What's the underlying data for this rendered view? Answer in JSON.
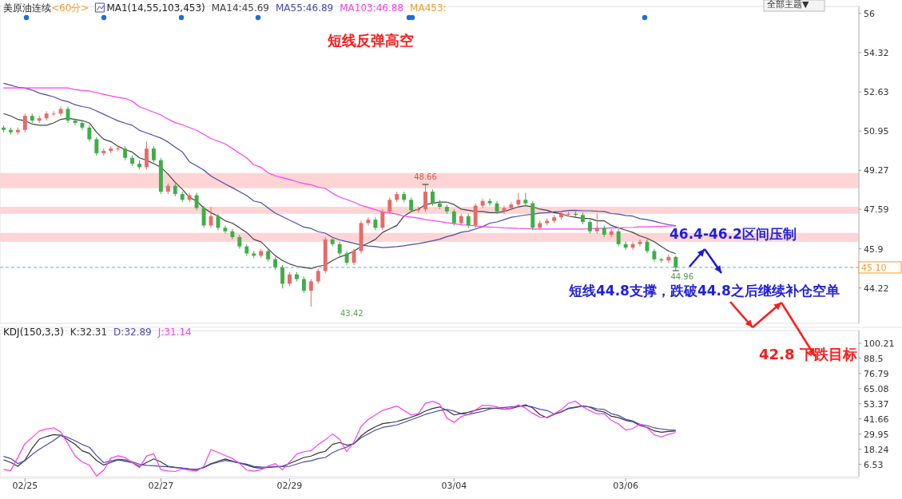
{
  "chart_data": [
    {
      "type": "candlestick",
      "title": "美原油连续",
      "subtitle": "<60分>",
      "legend_title": "MA1(14,55,103,453)",
      "legend": "top",
      "tick_labels": "y",
      "ylim": [
        42.7,
        56.3
      ],
      "yticks": [
        44.22,
        45.9,
        47.59,
        49.27,
        50.95,
        52.63,
        54.32,
        56.0
      ],
      "categories": [
        null,
        null,
        null,
        null,
        null,
        null,
        null,
        null,
        null,
        null,
        null,
        null,
        null,
        null,
        null,
        null,
        null,
        null,
        null,
        null,
        null,
        null,
        null,
        null,
        null,
        null,
        null,
        null,
        null,
        null,
        null,
        null,
        null,
        null,
        null,
        null,
        null,
        null,
        null,
        null,
        null,
        null,
        null,
        null,
        null,
        null,
        null,
        null,
        null,
        null,
        null,
        null,
        null,
        null,
        null,
        null,
        null,
        null,
        null,
        null,
        null,
        null,
        null,
        null,
        null,
        null,
        null,
        null,
        null,
        null,
        null,
        null,
        null,
        null,
        null,
        null,
        null,
        null,
        null,
        null,
        null,
        null,
        null,
        null,
        null,
        null,
        null,
        null,
        null,
        null,
        null,
        null,
        null,
        null,
        null
      ],
      "ohlc": [
        [
          51.1,
          51.2,
          50.9,
          51.0
        ],
        [
          51.0,
          51.1,
          50.8,
          50.9
        ],
        [
          50.9,
          51.1,
          50.8,
          51.0
        ],
        [
          51.0,
          51.7,
          50.9,
          51.6
        ],
        [
          51.6,
          51.7,
          51.3,
          51.4
        ],
        [
          51.4,
          51.6,
          51.3,
          51.5
        ],
        [
          51.5,
          51.8,
          51.4,
          51.7
        ],
        [
          51.7,
          51.8,
          51.6,
          51.7
        ],
        [
          51.7,
          52.0,
          51.6,
          51.9
        ],
        [
          51.9,
          52.0,
          51.3,
          51.4
        ],
        [
          51.4,
          51.5,
          51.2,
          51.3
        ],
        [
          51.3,
          51.4,
          51.0,
          51.1
        ],
        [
          51.1,
          51.2,
          50.5,
          50.6
        ],
        [
          50.6,
          50.7,
          49.9,
          50.0
        ],
        [
          50.0,
          50.2,
          49.9,
          50.1
        ],
        [
          50.1,
          50.3,
          50.0,
          50.2
        ],
        [
          50.2,
          50.3,
          50.1,
          50.2
        ],
        [
          50.2,
          50.3,
          49.7,
          49.8
        ],
        [
          49.8,
          49.9,
          49.45,
          49.55
        ],
        [
          49.55,
          49.7,
          49.3,
          49.4
        ],
        [
          49.4,
          50.5,
          49.3,
          50.2
        ],
        [
          50.2,
          50.3,
          49.6,
          49.7
        ],
        [
          49.7,
          49.8,
          48.25,
          48.35
        ],
        [
          48.35,
          48.7,
          48.25,
          48.6
        ],
        [
          48.6,
          48.7,
          48.15,
          48.25
        ],
        [
          48.25,
          48.35,
          47.9,
          48.0
        ],
        [
          48.0,
          48.3,
          47.9,
          48.2
        ],
        [
          48.2,
          48.3,
          47.55,
          47.65
        ],
        [
          47.65,
          47.75,
          46.8,
          46.9
        ],
        [
          46.9,
          47.7,
          46.8,
          47.3
        ],
        [
          47.3,
          47.4,
          46.7,
          46.8
        ],
        [
          46.8,
          46.9,
          46.55,
          46.65
        ],
        [
          46.65,
          46.75,
          46.3,
          46.4
        ],
        [
          46.4,
          46.5,
          45.9,
          46.0
        ],
        [
          46.0,
          46.1,
          45.6,
          45.7
        ],
        [
          45.7,
          45.8,
          45.5,
          45.6
        ],
        [
          45.6,
          45.9,
          45.5,
          45.8
        ],
        [
          45.8,
          45.9,
          45.35,
          45.45
        ],
        [
          45.45,
          45.55,
          45.0,
          45.1
        ],
        [
          45.1,
          45.2,
          44.2,
          44.4
        ],
        [
          44.4,
          44.9,
          44.3,
          44.8
        ],
        [
          44.8,
          44.9,
          44.5,
          44.6
        ],
        [
          44.6,
          44.7,
          44.0,
          44.1
        ],
        [
          44.1,
          44.6,
          43.42,
          44.5
        ],
        [
          44.5,
          45.05,
          44.4,
          44.95
        ],
        [
          44.95,
          46.4,
          44.85,
          46.3
        ],
        [
          46.3,
          46.4,
          46.0,
          46.1
        ],
        [
          46.1,
          46.2,
          45.6,
          45.7
        ],
        [
          45.7,
          45.8,
          45.2,
          45.3
        ],
        [
          45.3,
          45.9,
          45.2,
          45.8
        ],
        [
          45.8,
          47.1,
          45.7,
          47.0
        ],
        [
          47.0,
          47.25,
          46.9,
          47.15
        ],
        [
          47.15,
          47.25,
          46.7,
          46.8
        ],
        [
          46.8,
          47.6,
          46.7,
          47.5
        ],
        [
          47.5,
          48.1,
          47.4,
          48.0
        ],
        [
          48.0,
          48.35,
          47.9,
          48.25
        ],
        [
          48.25,
          48.35,
          47.9,
          48.0
        ],
        [
          48.0,
          48.1,
          47.45,
          47.55
        ],
        [
          47.55,
          47.7,
          47.45,
          47.6
        ],
        [
          47.6,
          48.66,
          47.5,
          48.35
        ],
        [
          48.35,
          48.45,
          47.75,
          47.85
        ],
        [
          47.85,
          48.0,
          47.6,
          47.7
        ],
        [
          47.7,
          47.8,
          47.4,
          47.5
        ],
        [
          47.5,
          47.6,
          46.9,
          47.0
        ],
        [
          47.0,
          47.4,
          46.9,
          47.3
        ],
        [
          47.3,
          47.4,
          46.8,
          46.9
        ],
        [
          46.9,
          47.85,
          46.8,
          47.75
        ],
        [
          47.75,
          48.05,
          47.65,
          47.95
        ],
        [
          47.95,
          48.05,
          47.75,
          47.85
        ],
        [
          47.85,
          47.95,
          47.4,
          47.5
        ],
        [
          47.5,
          47.75,
          47.4,
          47.65
        ],
        [
          47.65,
          47.9,
          47.55,
          47.8
        ],
        [
          47.8,
          48.3,
          47.7,
          48.0
        ],
        [
          48.0,
          48.3,
          47.75,
          47.85
        ],
        [
          47.85,
          47.95,
          46.7,
          46.8
        ],
        [
          46.8,
          47.1,
          46.7,
          47.0
        ],
        [
          47.0,
          47.2,
          46.9,
          47.1
        ],
        [
          47.1,
          47.35,
          47.0,
          47.25
        ],
        [
          47.25,
          47.5,
          47.15,
          47.4
        ],
        [
          47.4,
          47.5,
          47.3,
          47.4
        ],
        [
          47.4,
          47.5,
          47.25,
          47.35
        ],
        [
          47.35,
          47.45,
          46.95,
          47.05
        ],
        [
          47.05,
          47.15,
          46.55,
          46.65
        ],
        [
          46.65,
          47.4,
          46.55,
          46.8
        ],
        [
          46.8,
          46.9,
          46.4,
          46.5
        ],
        [
          46.5,
          46.75,
          46.4,
          46.65
        ],
        [
          46.65,
          46.75,
          46.0,
          46.1
        ],
        [
          46.1,
          46.2,
          45.85,
          45.95
        ],
        [
          45.95,
          46.2,
          45.85,
          46.1
        ],
        [
          46.1,
          46.3,
          46.0,
          46.2
        ],
        [
          46.2,
          46.3,
          45.7,
          45.8
        ],
        [
          45.8,
          45.9,
          45.35,
          45.45
        ],
        [
          45.45,
          45.5,
          45.3,
          45.4
        ],
        [
          45.4,
          45.65,
          45.3,
          45.55
        ],
        [
          45.55,
          45.6,
          44.96,
          45.1
        ]
      ],
      "series": [
        {
          "type": "line",
          "name": "MA14:45.69",
          "color": "#444444",
          "values": [
            51.7,
            51.6,
            51.45,
            51.4,
            51.25,
            51.2,
            51.2,
            51.3,
            51.45,
            51.5,
            51.45,
            51.4,
            51.3,
            50.9,
            50.6,
            50.5,
            50.3,
            50.15,
            50.05,
            49.8,
            49.7,
            49.55,
            49.4,
            49.1,
            48.75,
            48.45,
            48.1,
            47.95,
            47.65,
            47.45,
            47.3,
            47.1,
            47.0,
            46.8,
            46.6,
            46.3,
            46.2,
            45.9,
            45.6,
            45.4,
            45.25,
            45.15,
            45.1,
            45.05,
            45.15,
            45.2,
            45.4,
            45.55,
            45.65,
            45.8,
            46.0,
            46.15,
            46.3,
            46.6,
            46.75,
            46.9,
            47.3,
            47.5,
            47.6,
            47.8,
            47.85,
            47.9,
            47.9,
            47.8,
            47.6,
            47.55,
            47.5,
            47.5,
            47.45,
            47.45,
            47.5,
            47.6,
            47.7,
            47.75,
            47.7,
            47.6,
            47.55,
            47.45,
            47.4,
            47.3,
            47.25,
            47.2,
            47.2,
            47.1,
            47.1,
            46.9,
            46.8,
            46.7,
            46.6,
            46.45,
            46.35,
            46.2,
            46.0,
            45.8,
            45.69
          ]
        },
        {
          "type": "line",
          "name": "MA55:46.89",
          "color": "#4a4ab0",
          "values": [
            53.0,
            52.92,
            52.83,
            52.79,
            52.71,
            52.58,
            52.5,
            52.42,
            52.29,
            52.21,
            52.08,
            52.0,
            51.95,
            51.81,
            51.67,
            51.53,
            51.39,
            51.29,
            51.2,
            50.98,
            50.87,
            50.76,
            50.65,
            50.48,
            50.26,
            50.06,
            49.63,
            49.46,
            49.28,
            49.02,
            48.85,
            48.68,
            48.52,
            48.35,
            48.18,
            47.95,
            47.88,
            47.65,
            47.43,
            47.28,
            47.13,
            46.98,
            46.83,
            46.77,
            46.63,
            46.57,
            46.39,
            46.28,
            46.21,
            46.14,
            46.06,
            46.02,
            45.99,
            45.95,
            45.97,
            45.99,
            46.03,
            46.08,
            46.12,
            46.18,
            46.24,
            46.31,
            46.42,
            46.5,
            46.61,
            46.65,
            46.75,
            46.85,
            47.0,
            47.05,
            47.15,
            47.25,
            47.3,
            47.35,
            47.38,
            47.43,
            47.45,
            47.48,
            47.5,
            47.54,
            47.55,
            47.53,
            47.53,
            47.51,
            47.5,
            47.41,
            47.39,
            47.33,
            47.3,
            47.19,
            47.15,
            47.08,
            47.0,
            46.93,
            46.89
          ]
        },
        {
          "type": "line",
          "name": "MA103:46.88",
          "color": "#ff3cf0",
          "values": [
            52.8,
            52.8,
            52.8,
            52.8,
            52.8,
            52.8,
            52.8,
            52.8,
            52.8,
            52.8,
            52.73,
            52.69,
            52.67,
            52.6,
            52.53,
            52.46,
            52.4,
            52.35,
            52.23,
            51.99,
            51.88,
            51.76,
            51.64,
            51.46,
            51.31,
            51.22,
            51.1,
            50.98,
            50.81,
            50.63,
            50.52,
            50.4,
            50.2,
            50.0,
            49.8,
            49.5,
            49.4,
            49.16,
            49.03,
            48.95,
            48.87,
            48.78,
            48.7,
            48.65,
            48.54,
            48.49,
            48.28,
            48.12,
            48.01,
            47.9,
            47.76,
            47.67,
            47.58,
            47.48,
            47.44,
            47.39,
            47.3,
            47.26,
            47.22,
            47.15,
            47.11,
            47.07,
            47.02,
            46.98,
            46.93,
            46.92,
            46.88,
            46.85,
            46.83,
            46.82,
            46.8,
            46.79,
            46.77,
            46.76,
            46.75,
            46.75,
            46.75,
            46.75,
            46.75,
            46.75,
            46.75,
            46.75,
            46.76,
            46.77,
            46.77,
            46.8,
            46.8,
            46.81,
            46.82,
            46.84,
            46.84,
            46.85,
            46.86,
            46.87,
            46.88
          ]
        }
      ],
      "bands": [
        {
          "axis": "y",
          "from": 48.5,
          "to": 49.15,
          "color": "#ffd4d4"
        },
        {
          "axis": "y",
          "from": 47.4,
          "to": 47.7,
          "color": "#ffd4d4"
        },
        {
          "axis": "y",
          "from": 46.2,
          "to": 46.58,
          "color": "#ffd4d4"
        }
      ],
      "ref_lines": [
        {
          "axis": "y",
          "value": 45.1,
          "label": "45.10",
          "color": "#5aaaf0",
          "line_style": "dashed"
        }
      ],
      "annotations": [
        "MA453:",
        "全部主题▼",
        {
          "text": "48.66",
          "y": 48.66
        },
        "43.42",
        {
          "text": "44.96",
          "y": 44.96
        },
        "短线反弹高空",
        "46.4-46.2区间压制",
        "短线44.8支撑，跌破44.8之后继续补仓空单",
        "42.8 下跌目标"
      ]
    },
    {
      "type": "line",
      "title": "KDJ(150,3,3)",
      "legend": "top left",
      "ylim": [
        -3,
        110
      ],
      "yticks": [
        100.21,
        88.5,
        76.79,
        65.08,
        53.37,
        41.66,
        29.95,
        18.24,
        6.53
      ],
      "categories": [
        null,
        null,
        null,
        "02/25",
        null,
        null,
        null,
        null,
        null,
        null,
        null,
        null,
        null,
        null,
        null,
        null,
        null,
        null,
        null,
        null,
        null,
        null,
        "02/27",
        null,
        null,
        null,
        null,
        null,
        null,
        null,
        null,
        null,
        null,
        null,
        null,
        null,
        null,
        null,
        null,
        null,
        "02/29",
        null,
        null,
        null,
        null,
        null,
        null,
        null,
        null,
        null,
        null,
        null,
        null,
        null,
        null,
        null,
        null,
        null,
        null,
        null,
        null,
        null,
        null,
        "03/04",
        null,
        null,
        null,
        null,
        null,
        null,
        null,
        null,
        null,
        null,
        null,
        null,
        null,
        null,
        null,
        null,
        null,
        null,
        null,
        null,
        null,
        null,
        null,
        "03/06",
        null,
        null,
        null,
        null,
        null,
        null,
        null
      ],
      "series": [
        {
          "name": "K:32.31",
          "color": "#333333",
          "values": [
            10,
            8,
            5,
            9.8,
            19,
            26,
            28,
            29.5,
            29,
            25.5,
            22,
            17,
            15,
            9.5,
            6,
            8,
            10,
            9,
            7.8,
            5,
            8,
            10.7,
            8.4,
            5,
            4.2,
            3.5,
            2.9,
            2.5,
            4.2,
            7,
            8.9,
            10.7,
            9,
            7.6,
            6,
            4.2,
            3.5,
            4.1,
            4.6,
            5,
            7.2,
            9.5,
            11.8,
            12.9,
            15.3,
            16.6,
            21.9,
            23.4,
            21.4,
            22.4,
            28.5,
            32.6,
            35.6,
            38,
            38.7,
            39.6,
            41.2,
            43,
            44.9,
            47.8,
            49.7,
            50.9,
            48.2,
            44.7,
            45.9,
            46.8,
            48.3,
            49.7,
            50.1,
            49.8,
            49.3,
            49.7,
            51.2,
            52.6,
            50.1,
            45,
            42.5,
            45.2,
            47,
            49.9,
            50.8,
            51.7,
            50.7,
            48,
            47,
            43.7,
            42.6,
            40.5,
            39.5,
            36.5,
            35.1,
            32.4,
            31.3,
            32,
            32.3
          ]
        },
        {
          "name": "D:32.89",
          "color": "#4a4ab0",
          "values": [
            12.7,
            11,
            7,
            9.4,
            14.1,
            18.1,
            21.5,
            25,
            29,
            27.3,
            24.8,
            21.8,
            19.7,
            13.3,
            7.8,
            9.1,
            10.3,
            10,
            8.6,
            6.6,
            5.7,
            5.4,
            5,
            4.6,
            4,
            3.5,
            2.8,
            2.5,
            4,
            6.6,
            8.1,
            9.6,
            8.6,
            7.6,
            6.6,
            5,
            4.5,
            4.4,
            4.6,
            4.8,
            5,
            6.7,
            8.4,
            9.3,
            11,
            11.8,
            15.5,
            18,
            19.9,
            22.6,
            27.1,
            30,
            33,
            35,
            36,
            37,
            39,
            41,
            43,
            45.2,
            46.7,
            48.2,
            49,
            47.7,
            45.7,
            45,
            46.3,
            47.5,
            49.4,
            50,
            50.5,
            50.9,
            51.4,
            51.8,
            50.9,
            49.1,
            48.2,
            45.5,
            47.1,
            49.6,
            50.4,
            51.5,
            51,
            49.5,
            49,
            45.7,
            44.3,
            41.4,
            40,
            37.4,
            36.5,
            34.7,
            33.9,
            33.2,
            32.9
          ]
        },
        {
          "name": "J:31.14",
          "color": "#ff3cf0",
          "values": [
            2.5,
            1.7,
            11.9,
            22.7,
            27.2,
            32.3,
            33.8,
            34.8,
            31.5,
            22.5,
            13.1,
            8.3,
            5.9,
            -2.5,
            1.9,
            11.3,
            13.1,
            11.7,
            7.8,
            3.9,
            13,
            14.7,
            2.3,
            1.4,
            1,
            2.9,
            2,
            1.4,
            4.9,
            18,
            15.7,
            13.4,
            11.1,
            7.3,
            2.1,
            1.2,
            2.3,
            5.1,
            7.1,
            2.3,
            8.4,
            14.5,
            16.3,
            17.1,
            21.8,
            25.5,
            30.1,
            25.9,
            16.3,
            24,
            35.8,
            41.3,
            44.7,
            48.2,
            49.9,
            51.6,
            48.2,
            44.7,
            45.7,
            53.7,
            55.3,
            53.1,
            42.3,
            39,
            43.5,
            45,
            48.6,
            52.2,
            52,
            51,
            49,
            50,
            52.5,
            50,
            46,
            43,
            43,
            45.6,
            48.8,
            53.8,
            55.4,
            51,
            48,
            45.5,
            45.8,
            40.5,
            37.8,
            33,
            34.2,
            37.6,
            34.8,
            29.3,
            27.7,
            29.8,
            31.1
          ]
        }
      ]
    }
  ]
}
